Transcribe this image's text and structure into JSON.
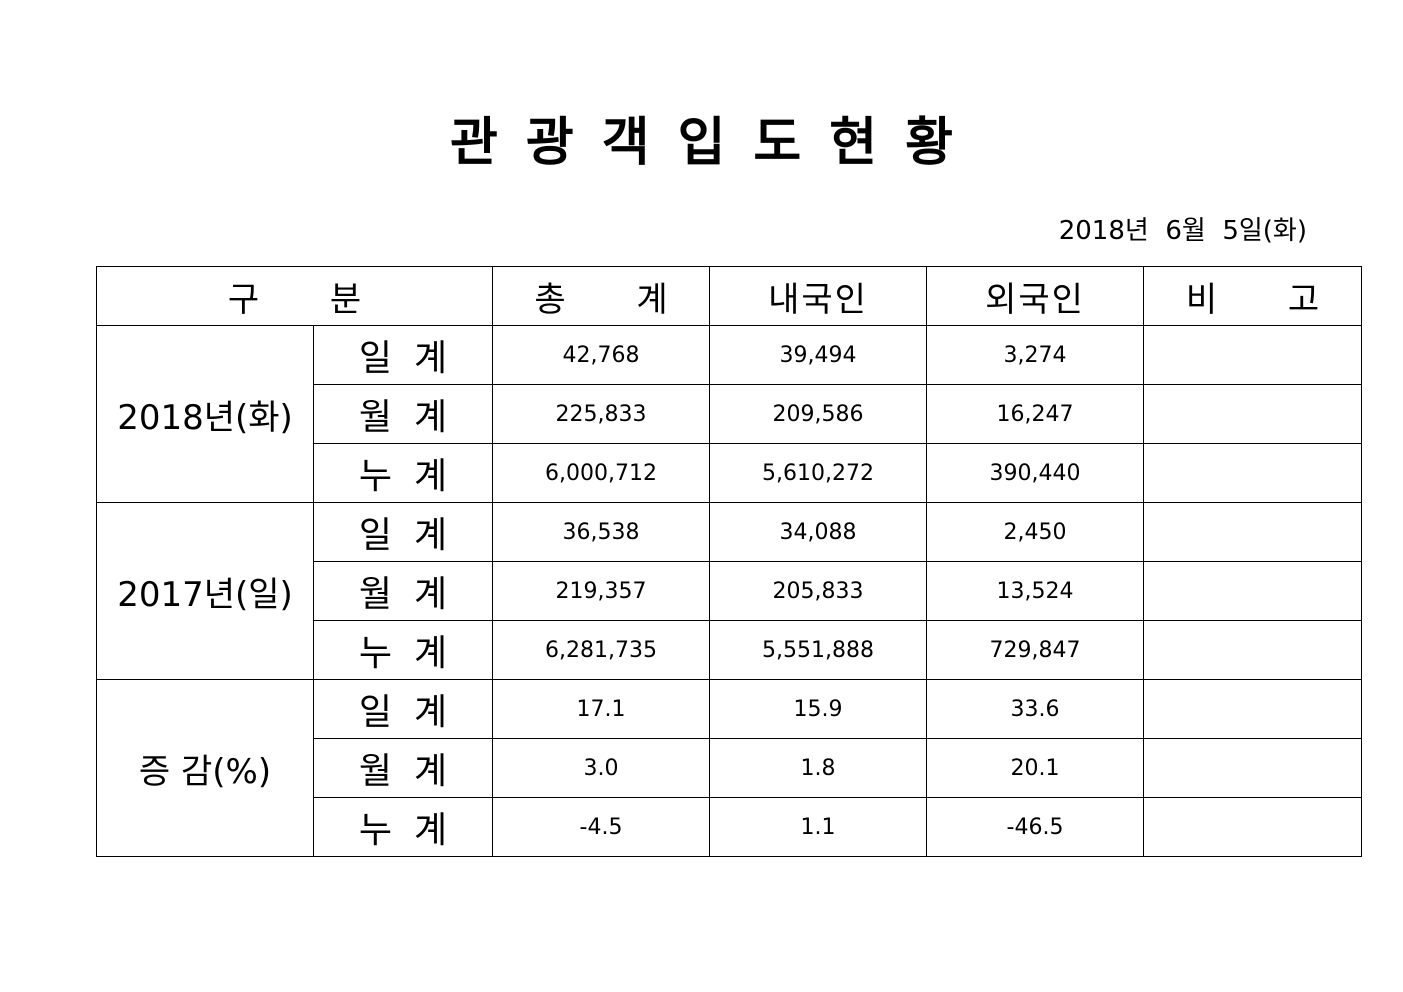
{
  "title": "관광객입도현황",
  "date": "2018년  6월  5일(화)",
  "table": {
    "headers": [
      "구  분",
      "총  계",
      "내국인",
      "외국인",
      "비  고"
    ],
    "groups": [
      {
        "label": "2018년(화)",
        "rows": [
          {
            "label": "일계",
            "total": "42,768",
            "domestic": "39,494",
            "foreign": "3,274",
            "note": ""
          },
          {
            "label": "월계",
            "total": "225,833",
            "domestic": "209,586",
            "foreign": "16,247",
            "note": ""
          },
          {
            "label": "누계",
            "total": "6,000,712",
            "domestic": "5,610,272",
            "foreign": "390,440",
            "note": ""
          }
        ]
      },
      {
        "label": "2017년(일)",
        "rows": [
          {
            "label": "일계",
            "total": "36,538",
            "domestic": "34,088",
            "foreign": "2,450",
            "note": ""
          },
          {
            "label": "월계",
            "total": "219,357",
            "domestic": "205,833",
            "foreign": "13,524",
            "note": ""
          },
          {
            "label": "누계",
            "total": "6,281,735",
            "domestic": "5,551,888",
            "foreign": "729,847",
            "note": ""
          }
        ]
      },
      {
        "label": "증 감(%)",
        "rows": [
          {
            "label": "일계",
            "total": "17.1",
            "domestic": "15.9",
            "foreign": "33.6",
            "note": ""
          },
          {
            "label": "월계",
            "total": "3.0",
            "domestic": "1.8",
            "foreign": "20.1",
            "note": ""
          },
          {
            "label": "누계",
            "total": "-4.5",
            "domestic": "1.1",
            "foreign": "-46.5",
            "note": ""
          }
        ]
      }
    ]
  }
}
